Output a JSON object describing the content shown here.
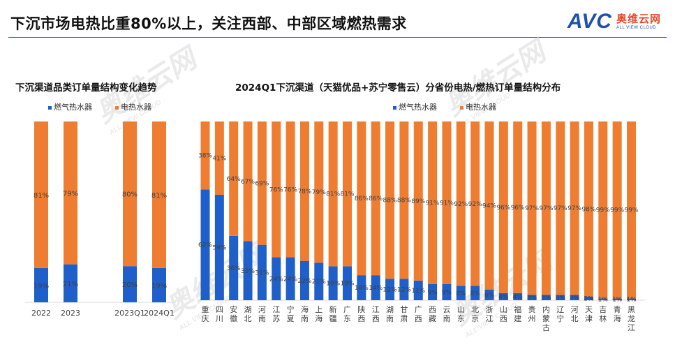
{
  "header": {
    "title": "下沉市场电热比重80%以上，关注西部、中部区域燃热需求",
    "logo_text": "AVC",
    "logo_cn": "奥维云网",
    "logo_en": "ALL VIEW CLOUD"
  },
  "watermark": {
    "cn": "奥维云网",
    "en": "ALL VIEW CLOUD"
  },
  "colors": {
    "gas": "#1f5fc9",
    "electric": "#ee7d31"
  },
  "chart_data": [
    {
      "type": "bar",
      "stacked": true,
      "title": "下沉渠道品类订单量结构变化趋势",
      "categories": [
        "2022",
        "2023",
        "2023Q1",
        "2024Q1"
      ],
      "series": [
        {
          "name": "燃气热水器",
          "values": [
            19,
            21,
            20,
            19
          ],
          "labels": [
            "19%",
            "21%",
            "20%",
            "19%"
          ]
        },
        {
          "name": "电热水器",
          "values": [
            81,
            79,
            80,
            81
          ],
          "labels": [
            "81%",
            "79%",
            "80%",
            "81%"
          ]
        }
      ],
      "ylim": [
        0,
        100
      ],
      "legend": "top"
    },
    {
      "type": "bar",
      "stacked": true,
      "title": "2024Q1下沉渠道（天猫优品+苏宁零售云）分省份电热/燃热订单量结构分布",
      "categories": [
        "重庆",
        "四川",
        "安徽",
        "湖北",
        "河南",
        "江苏",
        "宁夏",
        "海南",
        "上海",
        "新疆",
        "广东",
        "陕西",
        "江西",
        "湖南",
        "甘肃",
        "广西",
        "西藏",
        "云南",
        "山东",
        "北京",
        "浙江",
        "山西",
        "福建",
        "贵州",
        "内蒙古",
        "辽宁",
        "河北",
        "天津",
        "吉林",
        "青海",
        "黑龙江"
      ],
      "series": [
        {
          "name": "燃气热水器",
          "values": [
            62,
            59,
            36,
            33,
            31,
            24,
            24,
            22,
            21,
            19,
            19,
            14,
            14,
            12,
            12,
            11,
            9,
            9,
            8,
            8,
            6,
            4,
            4,
            3,
            3,
            3,
            3,
            2,
            1,
            1,
            1
          ],
          "labels": [
            "62%",
            "59%",
            "36%",
            "33%",
            "31%",
            "24%",
            "24%",
            "22%",
            "21%",
            "19%",
            "19%",
            "14%",
            "14%",
            "12%",
            "12%",
            "11%",
            "9%",
            "9%",
            "8%",
            "8%",
            "6%",
            "4%",
            "4%",
            "3%",
            "3%",
            "3%",
            "3%",
            "2%",
            "1%",
            "1%",
            "1%"
          ]
        },
        {
          "name": "电热水器",
          "values": [
            38,
            41,
            64,
            67,
            69,
            76,
            76,
            78,
            79,
            81,
            81,
            86,
            86,
            88,
            88,
            89,
            91,
            91,
            92,
            92,
            94,
            96,
            96,
            97,
            97,
            97,
            97,
            98,
            99,
            99,
            99
          ],
          "labels": [
            "38%",
            "41%",
            "64%",
            "67%",
            "69%",
            "76%",
            "76%",
            "78%",
            "79%",
            "81%",
            "81%",
            "86%",
            "86%",
            "88%",
            "88%",
            "89%",
            "91%",
            "91%",
            "92%",
            "92%",
            "94%",
            "96%",
            "96%",
            "97%",
            "97%",
            "97%",
            "97%",
            "98%",
            "99%",
            "99%",
            "99%"
          ]
        }
      ],
      "ylim": [
        0,
        100
      ],
      "legend": "top"
    }
  ]
}
